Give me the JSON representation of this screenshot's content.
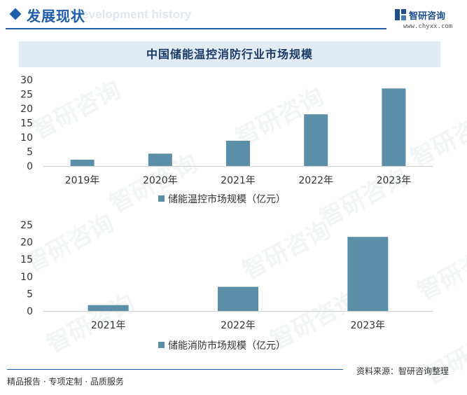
{
  "header": {
    "title": "发展现状",
    "ghost_text": "Development history",
    "logo_name": "智研咨询",
    "logo_url": "www.chyxx.com"
  },
  "chart_title": "中国储能温控消防行业市场规模",
  "watermark": "智研咨询",
  "colors": {
    "bar": "#5b8fa8",
    "brand": "#1f5ea8"
  },
  "chart_data": [
    {
      "type": "bar",
      "categories": [
        "2019年",
        "2020年",
        "2021年",
        "2022年",
        "2023年"
      ],
      "series": [
        {
          "name": "储能温控市场规模（亿元）",
          "values": [
            2.2,
            4.3,
            8.8,
            18,
            27
          ]
        }
      ],
      "ylim": [
        0,
        30
      ],
      "yticks": [
        0,
        5,
        10,
        15,
        20,
        25,
        30
      ],
      "legend": "bottom-center",
      "grid": false
    },
    {
      "type": "bar",
      "categories": [
        "2021年",
        "2022年",
        "2023年"
      ],
      "series": [
        {
          "name": "储能消防市场规模（亿元）",
          "values": [
            1.7,
            7,
            21.5
          ]
        }
      ],
      "ylim": [
        0,
        25
      ],
      "yticks": [
        0,
        5,
        10,
        15,
        20,
        25
      ],
      "legend": "bottom-center",
      "grid": false
    }
  ],
  "footer": {
    "left": "精品报告 · 专项定制 · 品质服务",
    "right": "资料来源：智研咨询整理"
  }
}
